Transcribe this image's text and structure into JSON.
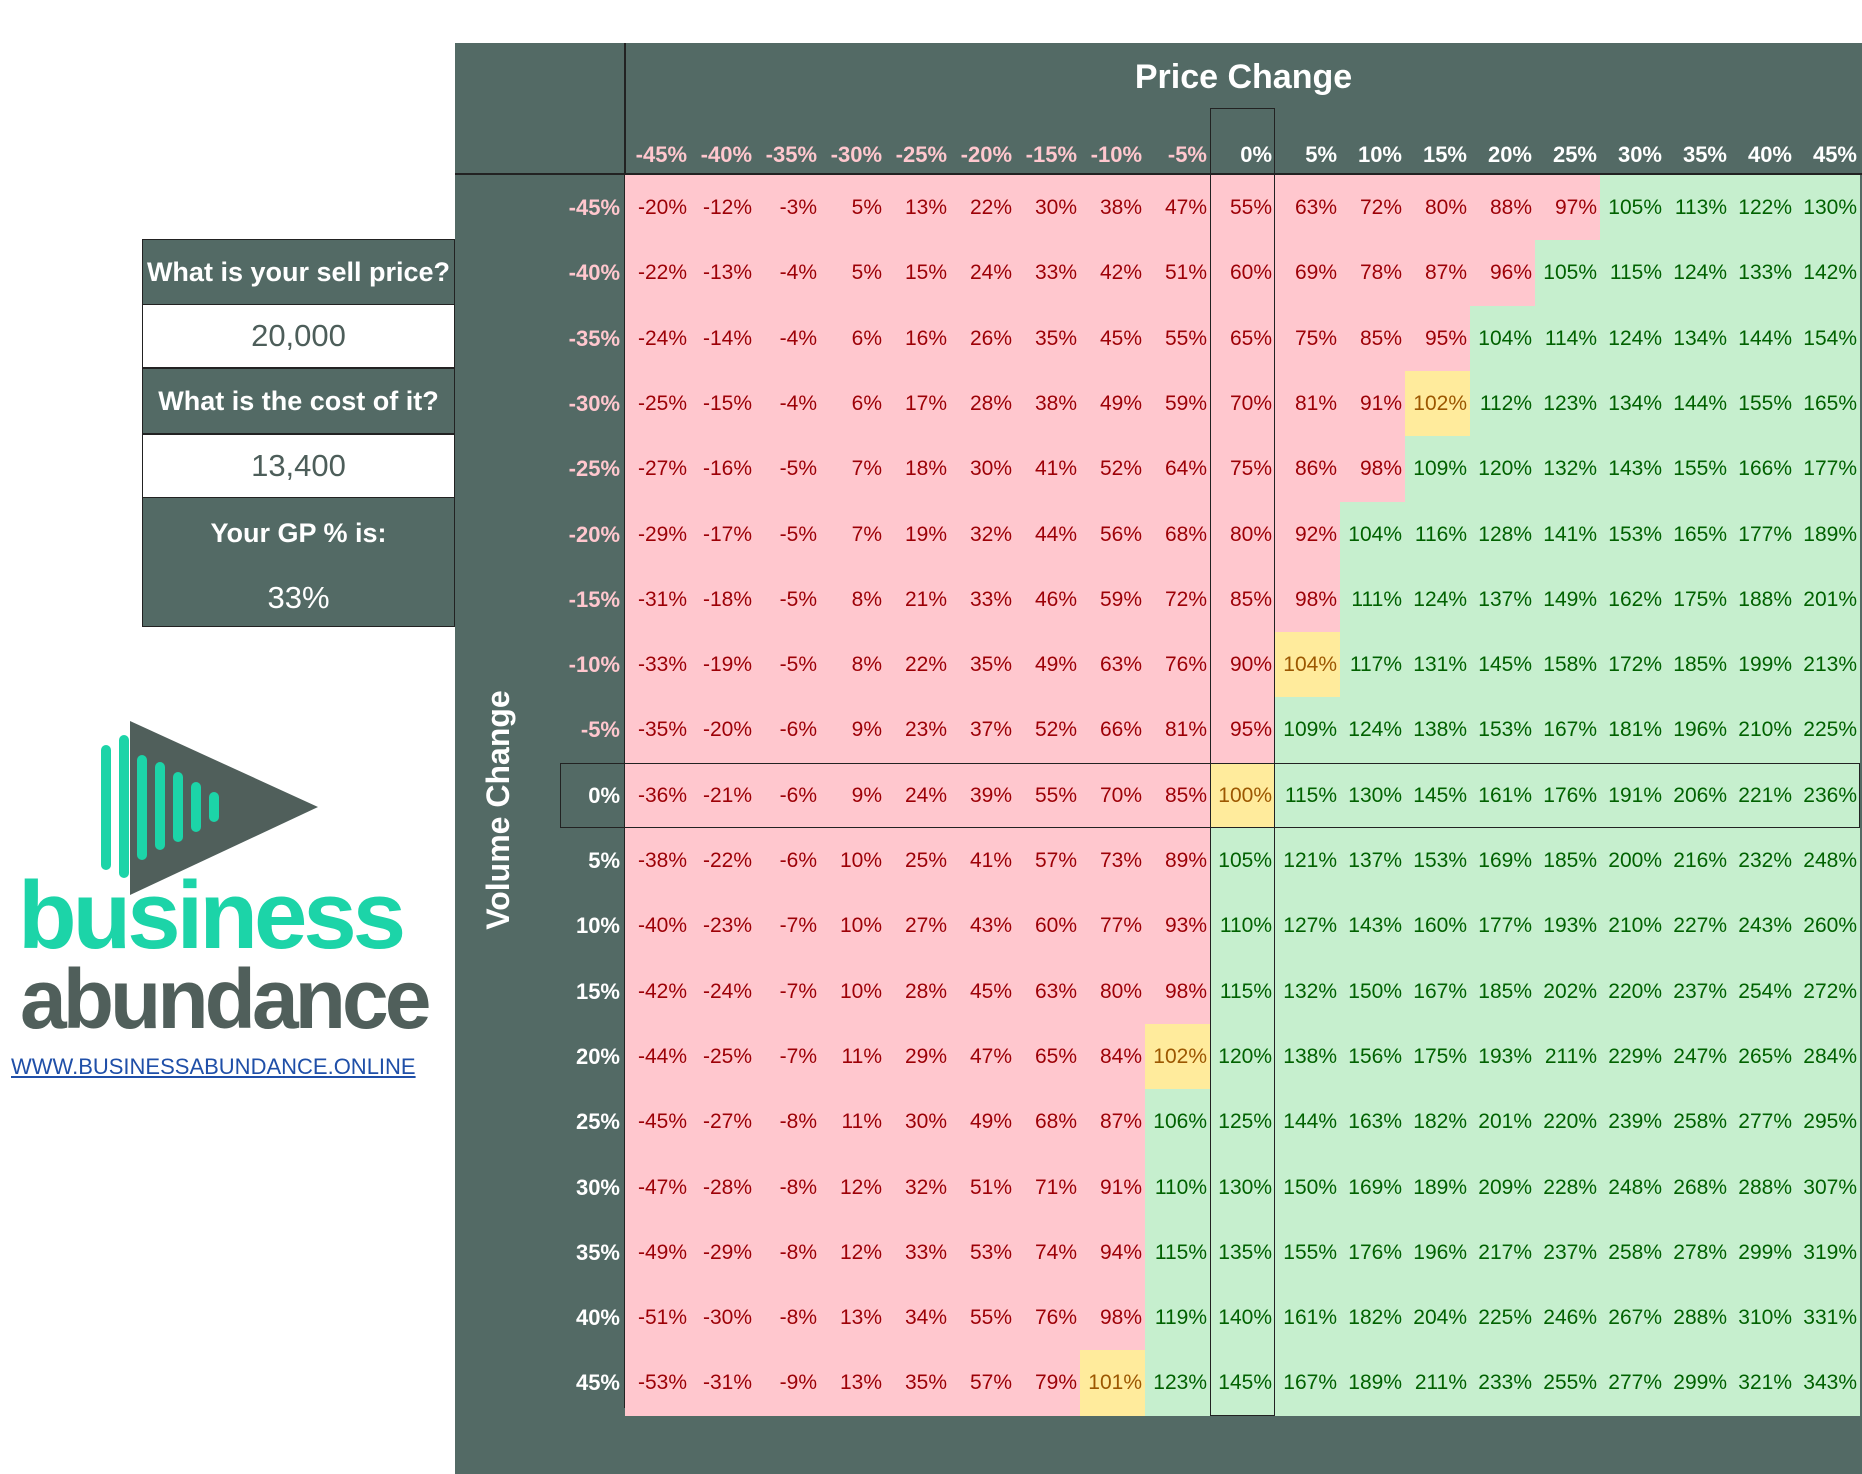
{
  "panel": {
    "sell_price_label": "What is your sell price?",
    "sell_price_value": "20,000",
    "cost_label": "What is the cost of it?",
    "cost_value": "13,400",
    "gp_label": "Your GP % is:",
    "gp_value": "33%"
  },
  "brand": {
    "word1": "business",
    "word2": "abundance",
    "url": "WWW.BUSINESSABUNDANCE.ONLINE",
    "colors": {
      "teal": "#1cd4a8",
      "slate": "#505f5b"
    }
  },
  "matrix": {
    "title": "Price Change",
    "y_title": "Volume Change",
    "price_headers": [
      "-45%",
      "-40%",
      "-35%",
      "-30%",
      "-25%",
      "-20%",
      "-15%",
      "-10%",
      "-5%",
      "0%",
      "5%",
      "10%",
      "15%",
      "20%",
      "25%",
      "30%",
      "35%",
      "40%",
      "45%"
    ],
    "volume_headers": [
      "-45%",
      "-40%",
      "-35%",
      "-30%",
      "-25%",
      "-20%",
      "-15%",
      "-10%",
      "-5%",
      "0%",
      "5%",
      "10%",
      "15%",
      "20%",
      "25%",
      "30%",
      "35%",
      "40%",
      "45%"
    ],
    "colors": {
      "header_bg": "#536a65",
      "red_bg": "#ffc7ce",
      "red_fg": "#9c0006",
      "green_bg": "#c6efce",
      "green_fg": "#006100",
      "yellow_bg": "#ffeb9c",
      "yellow_fg": "#9c5700",
      "neg_header": "#ffc7ce"
    },
    "rows": [
      [
        "-20%",
        "-12%",
        "-3%",
        "5%",
        "13%",
        "22%",
        "30%",
        "38%",
        "47%",
        "55%",
        "63%",
        "72%",
        "80%",
        "88%",
        "97%",
        "105%",
        "113%",
        "122%",
        "130%"
      ],
      [
        "-22%",
        "-13%",
        "-4%",
        "5%",
        "15%",
        "24%",
        "33%",
        "42%",
        "51%",
        "60%",
        "69%",
        "78%",
        "87%",
        "96%",
        "105%",
        "115%",
        "124%",
        "133%",
        "142%"
      ],
      [
        "-24%",
        "-14%",
        "-4%",
        "6%",
        "16%",
        "26%",
        "35%",
        "45%",
        "55%",
        "65%",
        "75%",
        "85%",
        "95%",
        "104%",
        "114%",
        "124%",
        "134%",
        "144%",
        "154%"
      ],
      [
        "-25%",
        "-15%",
        "-4%",
        "6%",
        "17%",
        "28%",
        "38%",
        "49%",
        "59%",
        "70%",
        "81%",
        "91%",
        "102%",
        "112%",
        "123%",
        "134%",
        "144%",
        "155%",
        "165%"
      ],
      [
        "-27%",
        "-16%",
        "-5%",
        "7%",
        "18%",
        "30%",
        "41%",
        "52%",
        "64%",
        "75%",
        "86%",
        "98%",
        "109%",
        "120%",
        "132%",
        "143%",
        "155%",
        "166%",
        "177%"
      ],
      [
        "-29%",
        "-17%",
        "-5%",
        "7%",
        "19%",
        "32%",
        "44%",
        "56%",
        "68%",
        "80%",
        "92%",
        "104%",
        "116%",
        "128%",
        "141%",
        "153%",
        "165%",
        "177%",
        "189%"
      ],
      [
        "-31%",
        "-18%",
        "-5%",
        "8%",
        "21%",
        "33%",
        "46%",
        "59%",
        "72%",
        "85%",
        "98%",
        "111%",
        "124%",
        "137%",
        "149%",
        "162%",
        "175%",
        "188%",
        "201%"
      ],
      [
        "-33%",
        "-19%",
        "-5%",
        "8%",
        "22%",
        "35%",
        "49%",
        "63%",
        "76%",
        "90%",
        "104%",
        "117%",
        "131%",
        "145%",
        "158%",
        "172%",
        "185%",
        "199%",
        "213%"
      ],
      [
        "-35%",
        "-20%",
        "-6%",
        "9%",
        "23%",
        "37%",
        "52%",
        "66%",
        "81%",
        "95%",
        "109%",
        "124%",
        "138%",
        "153%",
        "167%",
        "181%",
        "196%",
        "210%",
        "225%"
      ],
      [
        "-36%",
        "-21%",
        "-6%",
        "9%",
        "24%",
        "39%",
        "55%",
        "70%",
        "85%",
        "100%",
        "115%",
        "130%",
        "145%",
        "161%",
        "176%",
        "191%",
        "206%",
        "221%",
        "236%"
      ],
      [
        "-38%",
        "-22%",
        "-6%",
        "10%",
        "25%",
        "41%",
        "57%",
        "73%",
        "89%",
        "105%",
        "121%",
        "137%",
        "153%",
        "169%",
        "185%",
        "200%",
        "216%",
        "232%",
        "248%"
      ],
      [
        "-40%",
        "-23%",
        "-7%",
        "10%",
        "27%",
        "43%",
        "60%",
        "77%",
        "93%",
        "110%",
        "127%",
        "143%",
        "160%",
        "177%",
        "193%",
        "210%",
        "227%",
        "243%",
        "260%"
      ],
      [
        "-42%",
        "-24%",
        "-7%",
        "10%",
        "28%",
        "45%",
        "63%",
        "80%",
        "98%",
        "115%",
        "132%",
        "150%",
        "167%",
        "185%",
        "202%",
        "220%",
        "237%",
        "254%",
        "272%"
      ],
      [
        "-44%",
        "-25%",
        "-7%",
        "11%",
        "29%",
        "47%",
        "65%",
        "84%",
        "102%",
        "120%",
        "138%",
        "156%",
        "175%",
        "193%",
        "211%",
        "229%",
        "247%",
        "265%",
        "284%"
      ],
      [
        "-45%",
        "-27%",
        "-8%",
        "11%",
        "30%",
        "49%",
        "68%",
        "87%",
        "106%",
        "125%",
        "144%",
        "163%",
        "182%",
        "201%",
        "220%",
        "239%",
        "258%",
        "277%",
        "295%"
      ],
      [
        "-47%",
        "-28%",
        "-8%",
        "12%",
        "32%",
        "51%",
        "71%",
        "91%",
        "110%",
        "130%",
        "150%",
        "169%",
        "189%",
        "209%",
        "228%",
        "248%",
        "268%",
        "288%",
        "307%"
      ],
      [
        "-49%",
        "-29%",
        "-8%",
        "12%",
        "33%",
        "53%",
        "74%",
        "94%",
        "115%",
        "135%",
        "155%",
        "176%",
        "196%",
        "217%",
        "237%",
        "258%",
        "278%",
        "299%",
        "319%"
      ],
      [
        "-51%",
        "-30%",
        "-8%",
        "13%",
        "34%",
        "55%",
        "76%",
        "98%",
        "119%",
        "140%",
        "161%",
        "182%",
        "204%",
        "225%",
        "246%",
        "267%",
        "288%",
        "310%",
        "331%"
      ],
      [
        "-53%",
        "-31%",
        "-9%",
        "13%",
        "35%",
        "57%",
        "79%",
        "101%",
        "123%",
        "145%",
        "167%",
        "189%",
        "211%",
        "233%",
        "255%",
        "277%",
        "299%",
        "321%",
        "343%"
      ]
    ],
    "yellow_cells": [
      [
        3,
        12
      ],
      [
        7,
        10
      ],
      [
        9,
        9
      ],
      [
        13,
        8
      ],
      [
        18,
        7
      ]
    ]
  }
}
